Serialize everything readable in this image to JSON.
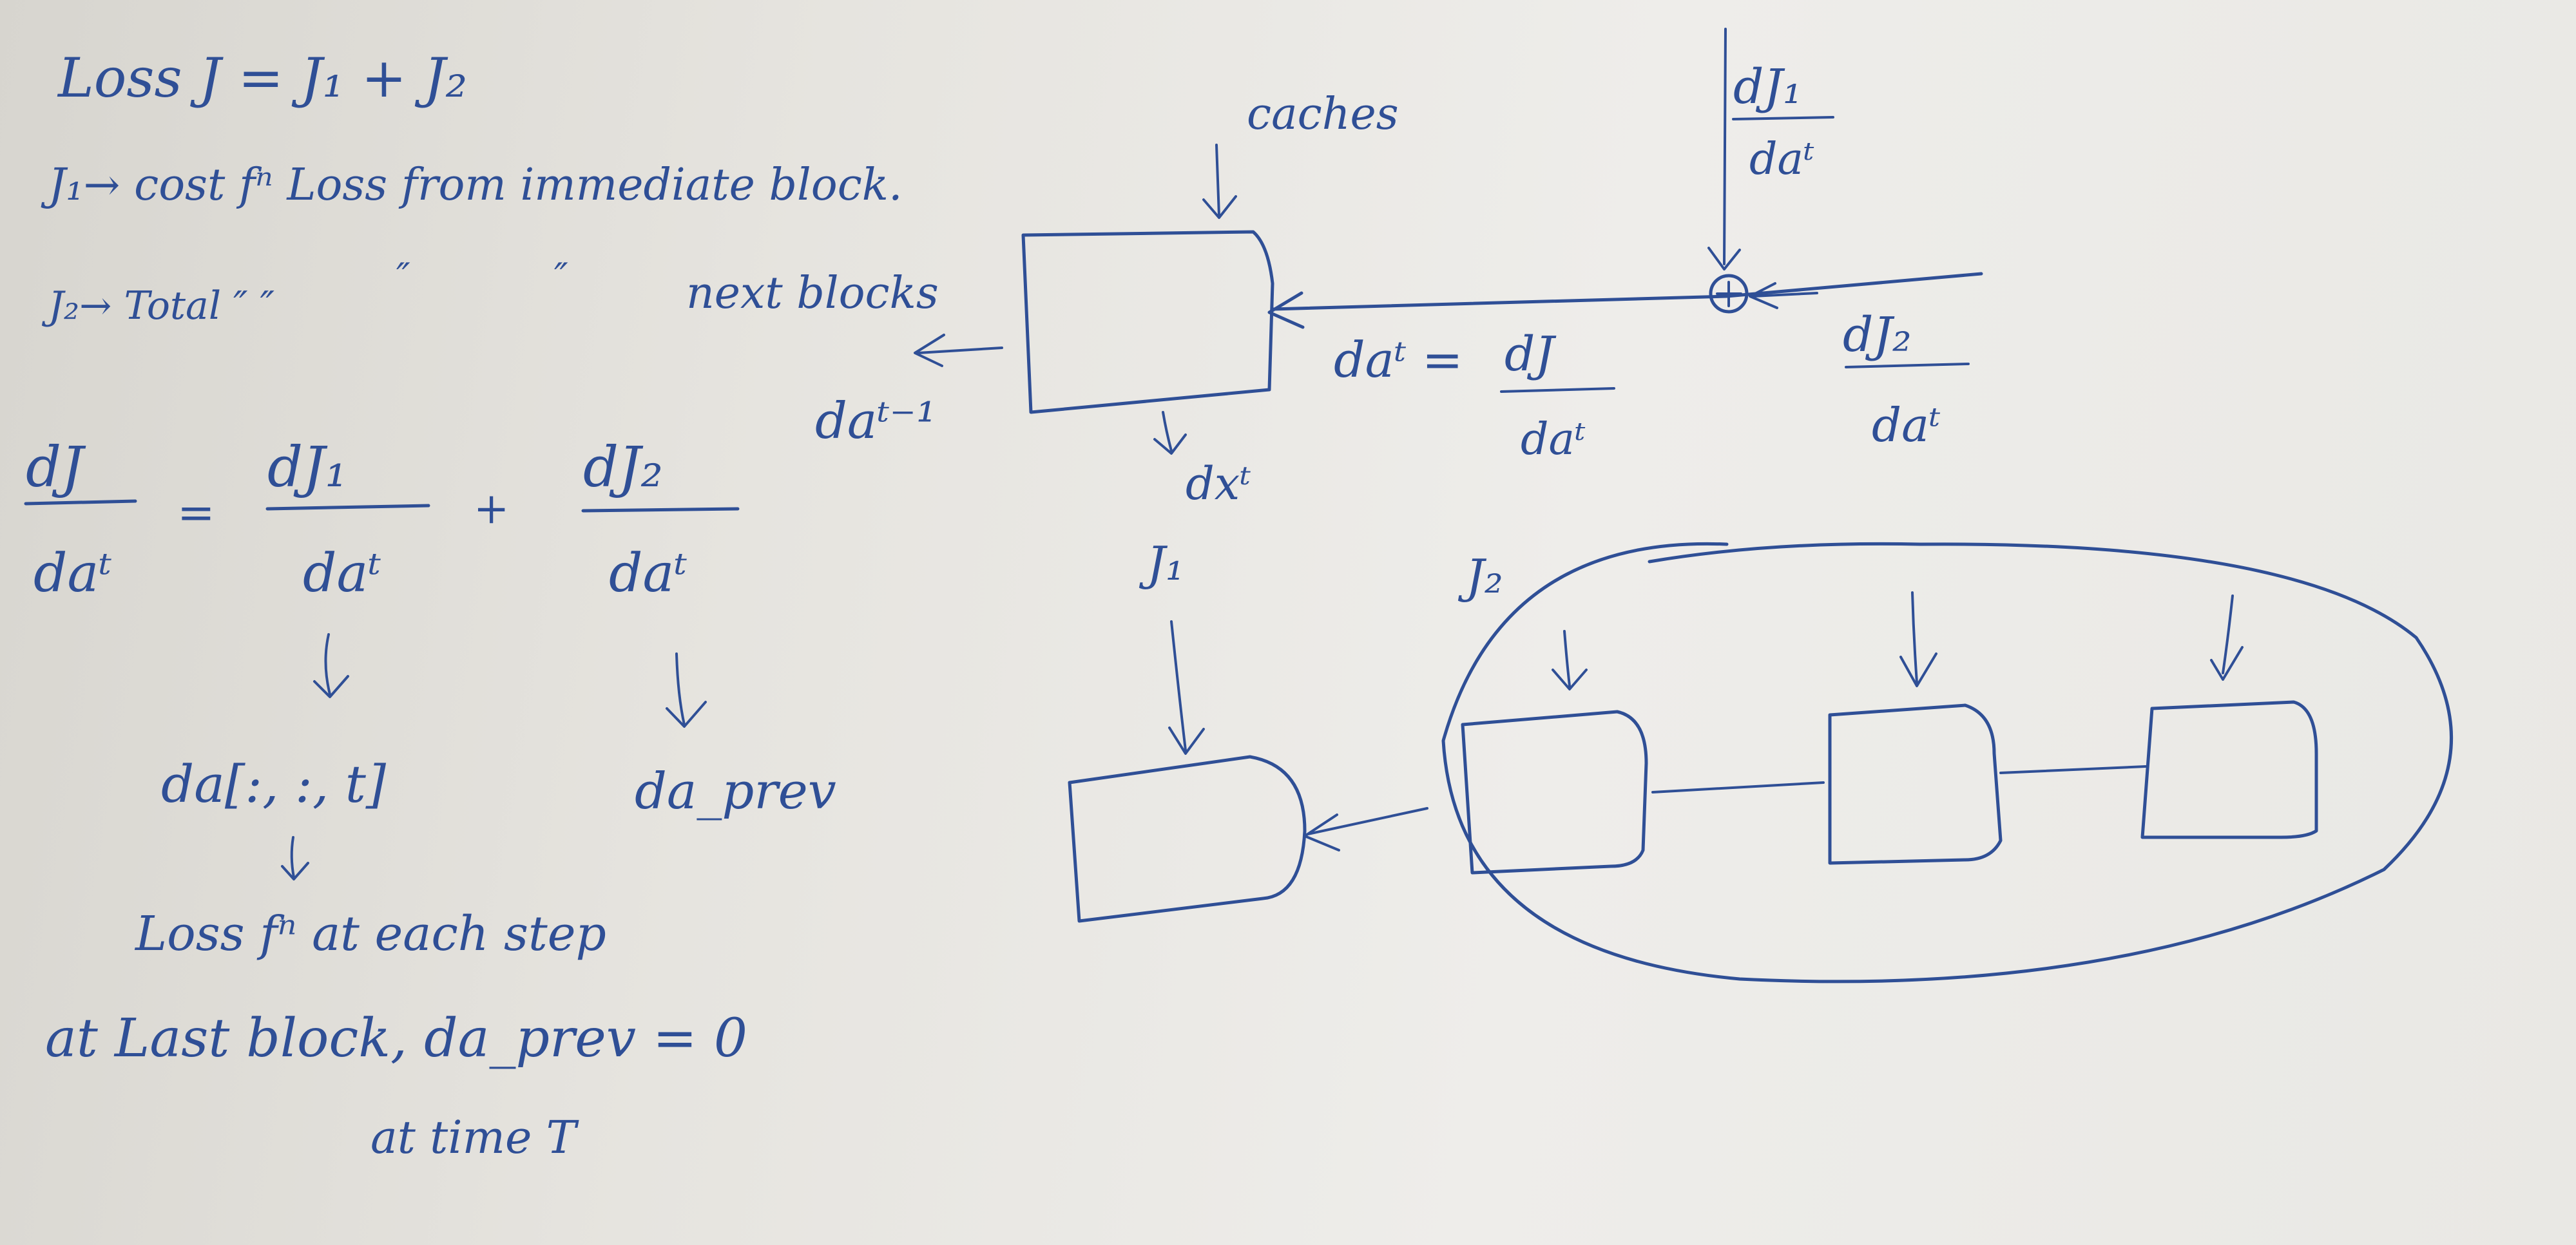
{
  "notes": {
    "loss_eq": "Loss J = J₁ + J₂",
    "j1_def": "J₁→ cost fⁿ Loss from immediate block.",
    "j2_def_a": "J₂→ Total ″ ″",
    "j2_def_ditto1": "″",
    "j2_def_ditto2": "″",
    "j2_def_b": "next blocks"
  },
  "equation": {
    "lhs_num": "dJ",
    "lhs_den": "daᵗ",
    "equals": "=",
    "t1_num": "dJ₁",
    "t1_den": "daᵗ",
    "plus": "+",
    "t2_num": "dJ₂",
    "t2_den": "daᵗ",
    "t1_result": "da[:, :, t]",
    "t2_result": "da_prev",
    "t1_desc": "Loss fⁿ at each step",
    "last_block": "at Last block, da_prev = 0",
    "at_time": "at time T"
  },
  "block_diagram": {
    "caches": "caches",
    "output_left": "daᵗ⁻¹",
    "output_down": "dxᵗ",
    "dat_lhs": "daᵗ =",
    "dat_num": "dJ",
    "dat_den": "daᵗ",
    "top_num": "dJ₁",
    "top_den": "daᵗ",
    "right_num": "dJ₂",
    "right_den": "daᵗ"
  },
  "chain_diagram": {
    "j1": "J₁",
    "j2": "J₂"
  }
}
